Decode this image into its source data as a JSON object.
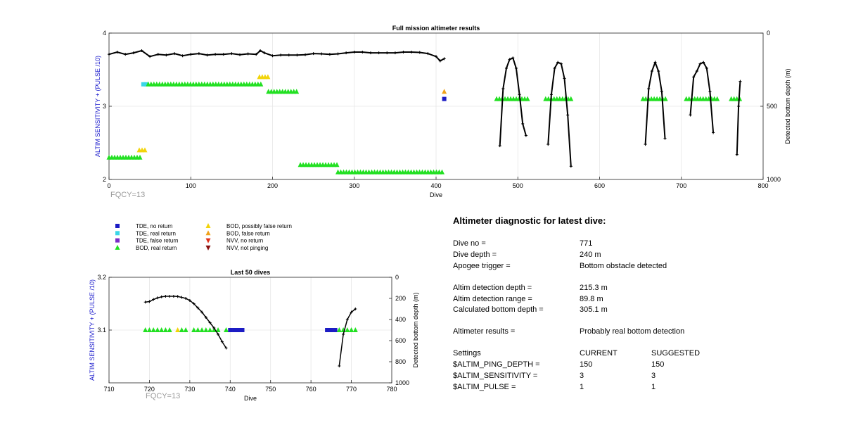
{
  "chart_data": [
    {
      "type": "scatter",
      "title": "Full mission altimeter results",
      "xlabel": "Dive",
      "ylabel": "ALTIM SENSITIVITY + (PULSE /10)",
      "y2label": "Detected bottom depth (m)",
      "xlim": [
        0,
        800
      ],
      "ylim": [
        2,
        4
      ],
      "y2lim": [
        0,
        1000
      ],
      "y2_reversed": true,
      "xticks": [
        "0",
        "100",
        "200",
        "300",
        "400",
        "500",
        "600",
        "700",
        "800"
      ],
      "yticks": [
        "2",
        "3",
        "4"
      ],
      "y2ticks": [
        "0",
        "500",
        "1000"
      ],
      "grid": true,
      "annotation": "FQCY=13",
      "settings_runs": [
        {
          "x0": 0,
          "x1": 40,
          "y": 2.3,
          "marker": "BOD, real return"
        },
        {
          "x0": 37,
          "x1": 44,
          "y": 2.4,
          "marker": "BOD, possibly false return"
        },
        {
          "x0": 42,
          "x1": 48,
          "y": 3.3,
          "marker": "TDE, real return"
        },
        {
          "x0": 48,
          "x1": 188,
          "y": 3.3,
          "marker": "BOD, real return"
        },
        {
          "x0": 184,
          "x1": 196,
          "y": 3.4,
          "marker": "BOD, possibly false return"
        },
        {
          "x0": 195,
          "x1": 232,
          "y": 3.2,
          "marker": "BOD, real return"
        },
        {
          "x0": 234,
          "x1": 281,
          "y": 2.2,
          "marker": "BOD, real return"
        },
        {
          "x0": 280,
          "x1": 410,
          "y": 2.1,
          "marker": "BOD, real return"
        },
        {
          "x0": 410,
          "x1": 412,
          "y": 3.2,
          "marker": "BOD, false return"
        },
        {
          "x0": 410,
          "x1": 413,
          "y": 3.1,
          "marker": "TDE, no return"
        },
        {
          "x0": 474,
          "x1": 514,
          "y": 3.1,
          "marker": "BOD, real return"
        },
        {
          "x0": 534,
          "x1": 567,
          "y": 3.1,
          "marker": "BOD, real return"
        },
        {
          "x0": 653,
          "x1": 683,
          "y": 3.1,
          "marker": "BOD, real return"
        },
        {
          "x0": 706,
          "x1": 744,
          "y": 3.1,
          "marker": "BOD, real return"
        },
        {
          "x0": 761,
          "x1": 773,
          "y": 3.1,
          "marker": "BOD, real return"
        }
      ],
      "bottom_depth_segments": [
        {
          "x": [
            0,
            10,
            20,
            30,
            40,
            50,
            60,
            70,
            80,
            90,
            100,
            110,
            120,
            130,
            140,
            150,
            160,
            170,
            180,
            185,
            190,
            200,
            210,
            220,
            230,
            240,
            250,
            260,
            270,
            280,
            290,
            300,
            310,
            320,
            330,
            340,
            350,
            360,
            370,
            380,
            390,
            400,
            405,
            410
          ],
          "y": [
            145,
            130,
            145,
            135,
            120,
            160,
            145,
            150,
            140,
            155,
            145,
            140,
            150,
            145,
            145,
            140,
            148,
            142,
            145,
            120,
            135,
            155,
            150,
            150,
            150,
            148,
            140,
            142,
            145,
            142,
            135,
            130,
            130,
            135,
            135,
            135,
            135,
            130,
            130,
            132,
            140,
            160,
            190,
            175
          ]
        },
        {
          "x": [
            478,
            482,
            486,
            490,
            494,
            498,
            502,
            506,
            510
          ],
          "y": [
            770,
            380,
            240,
            180,
            170,
            240,
            420,
            620,
            700
          ]
        },
        {
          "x": [
            537,
            541,
            545,
            549,
            553,
            557,
            561,
            565
          ],
          "y": [
            760,
            420,
            240,
            200,
            210,
            310,
            560,
            910
          ]
        },
        {
          "x": [
            656,
            660,
            664,
            668,
            672,
            676,
            680
          ],
          "y": [
            760,
            380,
            260,
            200,
            260,
            400,
            720
          ]
        },
        {
          "x": [
            711,
            715,
            719,
            723,
            727,
            731,
            735,
            739
          ],
          "y": [
            560,
            300,
            260,
            210,
            200,
            240,
            400,
            680
          ]
        },
        {
          "x": [
            768,
            770,
            772
          ],
          "y": [
            830,
            500,
            330
          ]
        }
      ]
    },
    {
      "type": "scatter",
      "title": "Last 50 dives",
      "xlabel": "Dive",
      "ylabel": "ALTIM SENSITIVITY + (PULSE /10)",
      "y2label": "Detected bottom depth (m)",
      "xlim": [
        710,
        780
      ],
      "ylim": [
        3.0,
        3.2
      ],
      "y2lim": [
        0,
        1000
      ],
      "y2_reversed": true,
      "xticks": [
        "710",
        "720",
        "730",
        "740",
        "750",
        "760",
        "770",
        "780"
      ],
      "yticks": [
        "3.1",
        "3.2"
      ],
      "y2ticks": [
        "0",
        "200",
        "400",
        "600",
        "800",
        "1000"
      ],
      "grid": true,
      "annotation": "FQCY=13",
      "settings_points": [
        {
          "dive": 719,
          "y": 3.1,
          "marker": "BOD, real return"
        },
        {
          "dive": 720,
          "y": 3.1,
          "marker": "BOD, real return"
        },
        {
          "dive": 721,
          "y": 3.1,
          "marker": "BOD, real return"
        },
        {
          "dive": 722,
          "y": 3.1,
          "marker": "BOD, real return"
        },
        {
          "dive": 723,
          "y": 3.1,
          "marker": "BOD, real return"
        },
        {
          "dive": 724,
          "y": 3.1,
          "marker": "BOD, real return"
        },
        {
          "dive": 725,
          "y": 3.1,
          "marker": "BOD, real return"
        },
        {
          "dive": 727,
          "y": 3.1,
          "marker": "BOD, possibly false return"
        },
        {
          "dive": 728,
          "y": 3.1,
          "marker": "BOD, real return"
        },
        {
          "dive": 729,
          "y": 3.1,
          "marker": "BOD, real return"
        },
        {
          "dive": 731,
          "y": 3.1,
          "marker": "BOD, real return"
        },
        {
          "dive": 732,
          "y": 3.1,
          "marker": "BOD, real return"
        },
        {
          "dive": 733,
          "y": 3.1,
          "marker": "BOD, real return"
        },
        {
          "dive": 734,
          "y": 3.1,
          "marker": "BOD, real return"
        },
        {
          "dive": 735,
          "y": 3.1,
          "marker": "BOD, real return"
        },
        {
          "dive": 736,
          "y": 3.1,
          "marker": "BOD, real return"
        },
        {
          "dive": 737,
          "y": 3.1,
          "marker": "BOD, real return"
        },
        {
          "dive": 739,
          "y": 3.1,
          "marker": "BOD, real return"
        },
        {
          "dive": 740,
          "y": 3.1,
          "marker": "TDE, no return"
        },
        {
          "dive": 741,
          "y": 3.1,
          "marker": "TDE, no return"
        },
        {
          "dive": 742,
          "y": 3.1,
          "marker": "TDE, no return"
        },
        {
          "dive": 743,
          "y": 3.1,
          "marker": "TDE, no return"
        },
        {
          "dive": 764,
          "y": 3.1,
          "marker": "TDE, no return"
        },
        {
          "dive": 765,
          "y": 3.1,
          "marker": "TDE, no return"
        },
        {
          "dive": 766,
          "y": 3.1,
          "marker": "TDE, no return"
        },
        {
          "dive": 767,
          "y": 3.1,
          "marker": "BOD, real return"
        },
        {
          "dive": 768,
          "y": 3.1,
          "marker": "BOD, real return"
        },
        {
          "dive": 769,
          "y": 3.1,
          "marker": "BOD, real return"
        },
        {
          "dive": 770,
          "y": 3.1,
          "marker": "BOD, real return"
        },
        {
          "dive": 771,
          "y": 3.1,
          "marker": "BOD, real return"
        }
      ],
      "bottom_depth_segments": [
        {
          "x": [
            719,
            720,
            721,
            722,
            723,
            724,
            725,
            726,
            727,
            728,
            729,
            730,
            731,
            732,
            733,
            734,
            735,
            736,
            737,
            738,
            739
          ],
          "y": [
            235,
            230,
            210,
            195,
            185,
            180,
            180,
            180,
            182,
            190,
            200,
            220,
            250,
            290,
            330,
            380,
            430,
            480,
            540,
            610,
            670
          ]
        },
        {
          "x": [
            767,
            768,
            769,
            770,
            771
          ],
          "y": [
            840,
            540,
            400,
            330,
            300
          ]
        }
      ]
    }
  ],
  "legend": [
    {
      "label": "TDE, no return",
      "shape": "square",
      "color": "#1c1cc4"
    },
    {
      "label": "TDE, real return",
      "shape": "square",
      "color": "#3ad6e8"
    },
    {
      "label": "TDE, false return",
      "shape": "square",
      "color": "#7a2bc7"
    },
    {
      "label": "BOD, real return",
      "shape": "triangle-up",
      "color": "#22e022"
    },
    {
      "label": "BOD, possibly false return",
      "shape": "triangle-up",
      "color": "#f2d40a"
    },
    {
      "label": "BOD, false return",
      "shape": "triangle-up",
      "color": "#f0a21a"
    },
    {
      "label": "NVV, no return",
      "shape": "triangle-down",
      "color": "#e0301a"
    },
    {
      "label": "NVV, not pinging",
      "shape": "triangle-down",
      "color": "#8a1010"
    }
  ],
  "diagnostic": {
    "title": "Altimeter diagnostic for latest dive:",
    "dive_no_label": "Dive no =",
    "dive_no": "771",
    "dive_depth_label": "Dive depth =",
    "dive_depth": "240 m",
    "apogee_label": "Apogee trigger =",
    "apogee": "Bottom obstacle detected",
    "altim_det_depth_label": "Altim detection depth =",
    "altim_det_depth": "215.3 m",
    "altim_det_range_label": "Altim detection range =",
    "altim_det_range": "89.8 m",
    "calc_bottom_label": "Calculated bottom depth =",
    "calc_bottom": "305.1 m",
    "results_label": "Altimeter results =",
    "results": "Probably real bottom detection",
    "settings_label": "Settings",
    "current_label": "CURRENT",
    "suggested_label": "SUGGESTED",
    "settings": [
      {
        "name": "$ALTIM_PING_DEPTH =",
        "current": "150",
        "suggested": "150"
      },
      {
        "name": "$ALTIM_SENSITIVITY =",
        "current": "3",
        "suggested": "3"
      },
      {
        "name": "$ALTIM_PULSE =",
        "current": "1",
        "suggested": "1"
      }
    ]
  }
}
